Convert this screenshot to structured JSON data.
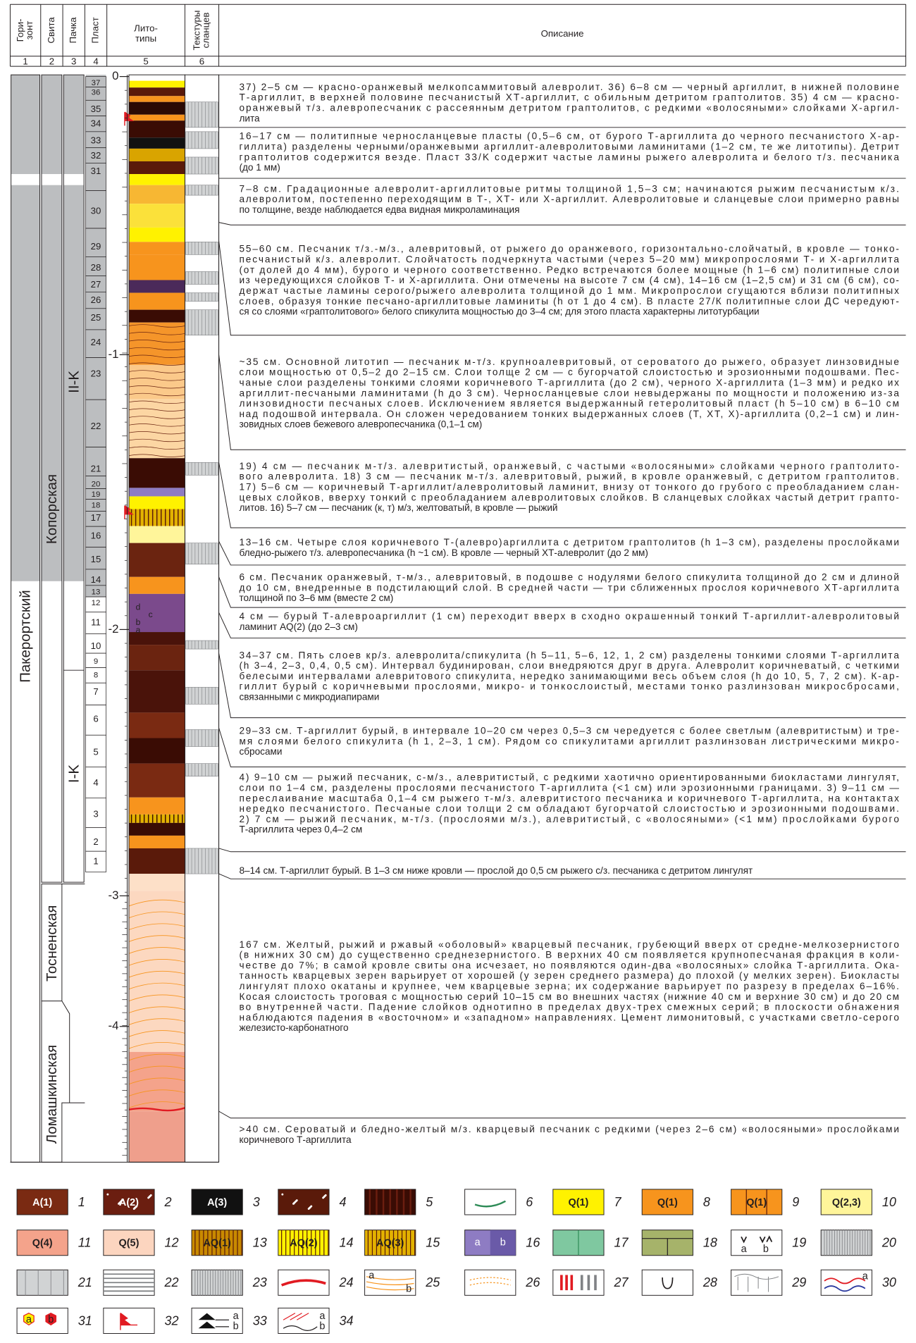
{
  "header": {
    "columns": [
      {
        "title_lines": [
          "Гори-",
          "зонт"
        ],
        "number": "1"
      },
      {
        "title_lines": [
          "Свита"
        ],
        "number": "2"
      },
      {
        "title_lines": [
          "Пачка"
        ],
        "number": "3"
      },
      {
        "title_lines": [
          "Пласт"
        ],
        "number": "4"
      },
      {
        "title_lines": [
          "Лито-",
          "типы"
        ],
        "number": "5"
      },
      {
        "title_lines": [
          "Текстуры",
          "сланцев"
        ],
        "number": "6"
      },
      {
        "title_lines": [
          "Описание"
        ]
      }
    ]
  },
  "horizon": "Пакерортский",
  "formations": [
    "Копорская",
    "Тосненская",
    "Ломашкинская"
  ],
  "members": [
    "II-K",
    "I-K"
  ],
  "beds": [
    "37",
    "36",
    "35",
    "34",
    "33",
    "32",
    "31",
    "30",
    "29",
    "28",
    "27",
    "26",
    "25",
    "24",
    "23",
    "22",
    "21",
    "20",
    "19",
    "18",
    "17",
    "16",
    "15",
    "14",
    "13",
    "12",
    "11",
    "10",
    "9",
    "8",
    "7",
    "6",
    "5",
    "4",
    "3",
    "2",
    "1"
  ],
  "bed11_sublabels": [
    "d",
    "c",
    "b",
    "a"
  ],
  "depth_labels": [
    "0",
    "-1",
    "-2",
    "-3",
    "-4"
  ],
  "descriptions": [
    [
      "37) 2–5 см — красно-оранжевый мелкопсаммитовый алевролит. 36) 6–8 см — черный аргиллит, в нижней половине",
      "Т-аргиллит, в верхней половине песчанистый ХТ-аргиллит, с обильным детритом граптолитов. 35) 4 см — красно-",
      "оранжевый т/з. алевропесчаник с рассеянным детритом граптолитов, с редкими «волосяными» слойками Х-аргил-",
      "лита"
    ],
    [
      "16–17 см — политипные черносланцевые пласты (0,5–6 см, от бурого Т-аргиллита до черного песчанистого Х-ар-",
      "гиллита) разделены черными/оранжевыми аргиллит-алевролитовыми ламинитами (1–2 см, те же литотипы). Детрит",
      "граптолитов содержится везде. Пласт 33/K содержит частые ламины рыжего алевролита и белого т/з. песчаника",
      "(до 1 мм)"
    ],
    [
      "7–8 см. Градационные алевролит-аргиллитовые ритмы толщиной 1,5–3 см; начинаются рыжим песчанистым к/з.",
      "алевролитом, постепенно переходящим в Т-, ХТ- или Х-аргиллит. Алевролитовые и сланцевые слои примерно равны",
      "по толщине, везде наблюдается едва видная микроламинация"
    ],
    [
      "55–60 см. Песчаник т/з.-м/з., алевритовый, от рыжего до оранжевого, горизонтально-слойчатый, в кровле — тонко-",
      "песчанистый к/з. алевролит. Слойчатость подчеркнута частыми (через 5–20 мм) микропрослоями Т- и Х-аргиллита",
      "(от долей до 4 мм), бурого и черного соответственно. Редко встречаются более мощные (h 1–6 см) политипные слои",
      "из чередующихся слойков Т- и Х-аргиллита. Они отмечены на высоте 7 см (4 см), 14–16 см (1–2,5 см) и 31 см (6 см), со-",
      "держат частые ламины серого/рыжего алевролита толщиной до 1 мм. Микропрослои сгущаются вблизи политипных",
      "слоев, образуя тонкие песчано-аргиллитовые ламиниты (h от 1 до 4 см). В пласте 27/К политипные слои ДС чередуют-",
      "ся со слоями «граптолитового» белого спикулита мощностью до 3–4 см; для этого пласта характерны литотурбации"
    ],
    [
      "~35 см. Основной литотип — песчаник м-т/з. крупноалевритовый, от сероватого до рыжего, образует линзовидные",
      "слои мощностью от 0,5–2 до 2–15 см. Слои толще 2 см — с бугорчатой слоистостью и эрозионными подошвами. Пес-",
      "чаные слои разделены тонкими слоями коричневого Т-аргиллита (до 2 см), черного Х-аргиллита (1–3 мм) и редко их",
      "аргиллит-песчаными ламинитами (h до 3 см). Черносланцевые слои невыдержаны по мощности и положению из-за",
      "линзовидности песчаных слоев. Исключением является выдержанный гетеролитовый пласт (h 5–10 см) в 6–10 см",
      "над подошвой интервала. Он сложен чередованием тонких выдержанных слоев (Т, ХТ, Х)-аргиллита (0,2–1 см) и лин-",
      "зовидных слоев бежевого алевропесчаника (0,1–1 см)"
    ],
    [
      "19) 4 см — песчаник м-т/з. алевритистый, оранжевый, с частыми «волосяными» слойками черного граптолито-",
      "вого алевролита. 18) 3 см — песчаник м-т/з. алевритовый, рыжий, в кровле оранжевый, с детритом граптолитов.",
      "17) 5–6 см — коричневый Т-аргиллит/алевролитовый ламинит, внизу от тонкого до грубого с преобладанием слан-",
      "цевых слойков, вверху тонкий с преобладанием алевролитовых слойков. В сланцевых слойках частый детрит грапто-",
      "литов. 16) 5–7 см — песчаник (к, т) м/з, желтоватый, в кровле — рыжий"
    ],
    [
      "13–16 см. Четыре слоя коричневого Т-(алевро)аргиллита с детритом граптолитов (h 1–3 см), разделены прослойками",
      "бледно-рыжего т/з. алевропесчаника (h ~1 см). В кровле — черный ХТ-алевролит (до 2 мм)"
    ],
    [
      "6 см. Песчаник оранжевый, т-м/з., алевритовый, в подошве с нодулями белого спикулита толщиной до 2 см и длиной",
      "до 10 см, внедренные в подстилающий слой. В средней части — три сближенных прослоя коричневого ХТ-аргиллита",
      "толщиной по 3–6 мм (вместе 2 см)"
    ],
    [
      "4 см — бурый Т-алевроаргиллит (1 см) переходит вверх в сходно окрашенный тонкий Т-аргиллит-алевролитовый",
      "ламинит AQ(2) (до 2–3 см)"
    ],
    [
      "34–37 см. Пять слоев кр/з. алевролита/спикулита (h 5–11, 5–6, 12, 1, 2 см) разделены тонкими слоями Т-аргиллита",
      "(h 3–4, 2–3, 0,4, 0,5 см). Интервал будинирован, слои внедряются друг в друга. Алевролит коричневатый, с четкими",
      "белесыми интервалами алевритового спикулита, нередко занимающими весь объем слоя (h до 10, 5, 7, 2 см). К-ар-",
      "гиллит бурый с коричневыми прослоями, микро- и тонкослоистый, местами тонко разлинзован микросбросами,",
      "связанными с микродиапирами"
    ],
    [
      "29–33 см. Т-аргиллит бурый, в интервале 10–20 см через 0,5–3 см чередуется с более светлым (алевритистым) и тре-",
      "мя слоями белого спикулита (h 1, 2–3, 1 см). Рядом со спикулитами аргиллит разлинзован листрическими микро-",
      "сбросами"
    ],
    [
      "4) 9–10 см — рыжий песчаник, с-м/з., алевритистый, с редкими хаотично ориентированными биокластами лингулят,",
      "слои по 1–4 см, разделены прослоями песчанистого Т-аргиллита (<1 см) или эрозионными границами. 3) 9–11 см —",
      "переслаивание масштаба 0,1–4 см рыжего т-м/з. алевритистого песчаника и коричневого Т-аргиллита, на контактах",
      "нередко песчанистого. Песчаные слои толщи 2 см обладают бугорчатой слоистостью и эрозионными подошвами.",
      "2) 7 см — рыжий песчаник, м-т/з. (прослоями м/з.), алевритистый, с «волосяными» (<1 мм) прослойками бурого",
      "Т-аргиллита через 0,4–2 см"
    ],
    [
      "8–14 см. Т-аргиллит бурый. В 1–3 см ниже кровли — прослой до 0,5 см рыжего с/з. песчаника с детритом лингулят"
    ],
    [
      "167 см. Желтый, рыжий и ржавый «оболовый» кварцевый песчаник, грубеющий вверх от средне-мелкозернистого",
      "(в нижних 30 см) до существенно среднезернистого. В верхних 40 см появляется крупнопесчаная фракция в коли-",
      "честве до 7%; в самой кровле свиты она исчезает, но появляются один-два «волосяных» слойка Т-аргиллита. Ока-",
      "танность кварцевых зерен варьирует от хорошей (у зерен среднего размера) до плохой (у мелких зерен). Биокласты",
      "лингулят плохо окатаны и крупнее, чем кварцевые зерна; их содержание варьирует по разрезу в пределах 6–16%.",
      "Косая слоистость троговая с мощностью серий 10–15 см во внешних частях (нижние 40 см и верхние 30 см) и до 20 см",
      "во внутренней части. Падение слойков однотипно в пределах двух-трех смежных серий; в плоскости обнажения",
      "наблюдаются падения в «восточном» и «западном» направлениях. Цемент лимонитовый, с участками светло-серого",
      "железисто-карбонатного"
    ],
    [
      ">40 см. Сероватый и бледно-желтый м/з. кварцевый песчаник с редкими (через 2–6 см) «волосяными» прослойками",
      "коричневого Т-аргиллита"
    ]
  ],
  "legend": [
    {
      "number": "1",
      "label": "A(1)"
    },
    {
      "number": "2",
      "label": "A(2)"
    },
    {
      "number": "3",
      "label": "A(3)"
    },
    {
      "number": "4"
    },
    {
      "number": "5"
    },
    {
      "number": "6"
    },
    {
      "number": "7",
      "label": "Q(1)"
    },
    {
      "number": "8",
      "label": "Q(1)"
    },
    {
      "number": "9",
      "label": "Q(1)"
    },
    {
      "number": "10",
      "label": "Q(2,3)"
    },
    {
      "number": "11",
      "label": "Q(4)"
    },
    {
      "number": "12",
      "label": "Q(5)"
    },
    {
      "number": "13",
      "label": "AQ(1)"
    },
    {
      "number": "14",
      "label": "AQ(2)"
    },
    {
      "number": "15",
      "label": "AQ(3)"
    },
    {
      "number": "16",
      "labels": [
        "a",
        "b"
      ]
    },
    {
      "number": "17"
    },
    {
      "number": "18"
    },
    {
      "number": "19",
      "labels": [
        "a",
        "b"
      ]
    },
    {
      "number": "20"
    },
    {
      "number": "21"
    },
    {
      "number": "22"
    },
    {
      "number": "23"
    },
    {
      "number": "24"
    },
    {
      "number": "25",
      "labels": [
        "a",
        "b"
      ]
    },
    {
      "number": "26"
    },
    {
      "number": "27"
    },
    {
      "number": "28"
    },
    {
      "number": "29"
    },
    {
      "number": "30",
      "labels": [
        "a"
      ]
    },
    {
      "number": "31",
      "labels": [
        "a",
        "b"
      ]
    },
    {
      "number": "32"
    },
    {
      "number": "33",
      "labels": [
        "a",
        "b"
      ]
    },
    {
      "number": "34",
      "labels": [
        "a",
        "b"
      ]
    }
  ]
}
